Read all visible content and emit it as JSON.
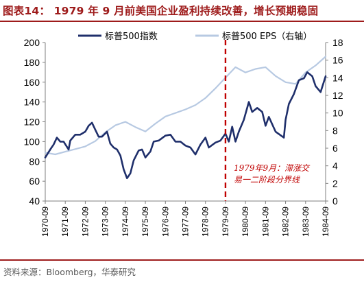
{
  "figure": {
    "title": "图表14：  1979 年 9 月前美国企业盈利持续改善，增长预期稳固",
    "source": "资料来源：Bloomberg，华泰研究"
  },
  "chart_data": {
    "type": "line",
    "x_ticks": [
      "1970-09",
      "1971-09",
      "1972-09",
      "1973-09",
      "1974-09",
      "1975-09",
      "1976-09",
      "1977-09",
      "1978-09",
      "1979-09",
      "1980-09",
      "1981-09",
      "1982-09",
      "1983-09",
      "1984-09"
    ],
    "y_left": {
      "min": 40,
      "max": 200,
      "step": 20,
      "ticks": [
        "40",
        "60",
        "80",
        "100",
        "120",
        "140",
        "160",
        "180",
        "200"
      ]
    },
    "y_right": {
      "min": 0,
      "max": 18,
      "step": 2,
      "ticks": [
        "0",
        "2",
        "4",
        "6",
        "8",
        "10",
        "12",
        "14",
        "16",
        "18"
      ]
    },
    "legend_placement": "top",
    "grid": false,
    "series": [
      {
        "name": "标普500指数",
        "axis": "left",
        "color": "#1f2f6b",
        "points": [
          [
            "1970-09",
            84
          ],
          [
            "1970-12",
            92
          ],
          [
            "1971-02",
            97
          ],
          [
            "1971-04",
            104
          ],
          [
            "1971-06",
            100
          ],
          [
            "1971-08",
            100
          ],
          [
            "1971-11",
            92
          ],
          [
            "1971-12",
            101
          ],
          [
            "1972-03",
            107
          ],
          [
            "1972-06",
            107
          ],
          [
            "1972-09",
            110
          ],
          [
            "1972-11",
            116
          ],
          [
            "1973-01",
            119
          ],
          [
            "1973-03",
            112
          ],
          [
            "1973-05",
            105
          ],
          [
            "1973-07",
            105
          ],
          [
            "1973-10",
            110
          ],
          [
            "1973-12",
            98
          ],
          [
            "1974-02",
            94
          ],
          [
            "1974-04",
            92
          ],
          [
            "1974-06",
            86
          ],
          [
            "1974-08",
            72
          ],
          [
            "1974-10",
            63
          ],
          [
            "1974-12",
            68
          ],
          [
            "1975-02",
            81
          ],
          [
            "1975-05",
            91
          ],
          [
            "1975-07",
            92
          ],
          [
            "1975-09",
            84
          ],
          [
            "1975-12",
            90
          ],
          [
            "1976-02",
            100
          ],
          [
            "1976-05",
            101
          ],
          [
            "1976-09",
            106
          ],
          [
            "1976-12",
            107
          ],
          [
            "1977-03",
            100
          ],
          [
            "1977-06",
            100
          ],
          [
            "1977-09",
            96
          ],
          [
            "1977-12",
            94
          ],
          [
            "1978-03",
            87
          ],
          [
            "1978-06",
            97
          ],
          [
            "1978-09",
            104
          ],
          [
            "1978-11",
            94
          ],
          [
            "1979-03",
            99
          ],
          [
            "1979-06",
            101
          ],
          [
            "1979-09",
            108
          ],
          [
            "1979-11",
            100
          ],
          [
            "1980-01",
            115
          ],
          [
            "1980-03",
            100
          ],
          [
            "1980-05",
            110
          ],
          [
            "1980-08",
            122
          ],
          [
            "1980-11",
            140
          ],
          [
            "1981-01",
            130
          ],
          [
            "1981-04",
            134
          ],
          [
            "1981-07",
            130
          ],
          [
            "1981-09",
            116
          ],
          [
            "1981-11",
            125
          ],
          [
            "1982-03",
            110
          ],
          [
            "1982-08",
            104
          ],
          [
            "1982-09",
            122
          ],
          [
            "1982-11",
            138
          ],
          [
            "1983-02",
            148
          ],
          [
            "1983-05",
            162
          ],
          [
            "1983-08",
            164
          ],
          [
            "1983-10",
            170
          ],
          [
            "1984-01",
            166
          ],
          [
            "1984-03",
            156
          ],
          [
            "1984-06",
            150
          ],
          [
            "1984-09",
            166
          ]
        ]
      },
      {
        "name": "标普500 EPS（右轴）",
        "axis": "right",
        "color": "#b7c9e2",
        "points": [
          [
            "1970-09",
            5.5
          ],
          [
            "1971-03",
            5.3
          ],
          [
            "1971-09",
            5.6
          ],
          [
            "1972-03",
            5.9
          ],
          [
            "1972-09",
            6.2
          ],
          [
            "1973-03",
            6.8
          ],
          [
            "1973-09",
            7.8
          ],
          [
            "1974-03",
            8.6
          ],
          [
            "1974-09",
            9.0
          ],
          [
            "1975-03",
            8.4
          ],
          [
            "1975-09",
            7.9
          ],
          [
            "1976-03",
            8.8
          ],
          [
            "1976-09",
            9.6
          ],
          [
            "1977-03",
            10.0
          ],
          [
            "1977-09",
            10.4
          ],
          [
            "1978-03",
            10.9
          ],
          [
            "1978-09",
            11.7
          ],
          [
            "1979-03",
            12.8
          ],
          [
            "1979-09",
            14.0
          ],
          [
            "1980-03",
            15.2
          ],
          [
            "1980-09",
            14.6
          ],
          [
            "1981-03",
            15.0
          ],
          [
            "1981-09",
            15.2
          ],
          [
            "1982-03",
            14.2
          ],
          [
            "1982-09",
            13.5
          ],
          [
            "1983-03",
            13.3
          ],
          [
            "1983-09",
            14.6
          ],
          [
            "1984-03",
            15.4
          ],
          [
            "1984-09",
            16.4
          ]
        ]
      }
    ],
    "marker_line": {
      "x": "1979-09",
      "color": "#c00000",
      "style": "dashed"
    },
    "annotation": {
      "lines": [
        "1979年9月：滞涨交",
        "易一二阶段分界线"
      ],
      "color": "#c00000"
    }
  }
}
